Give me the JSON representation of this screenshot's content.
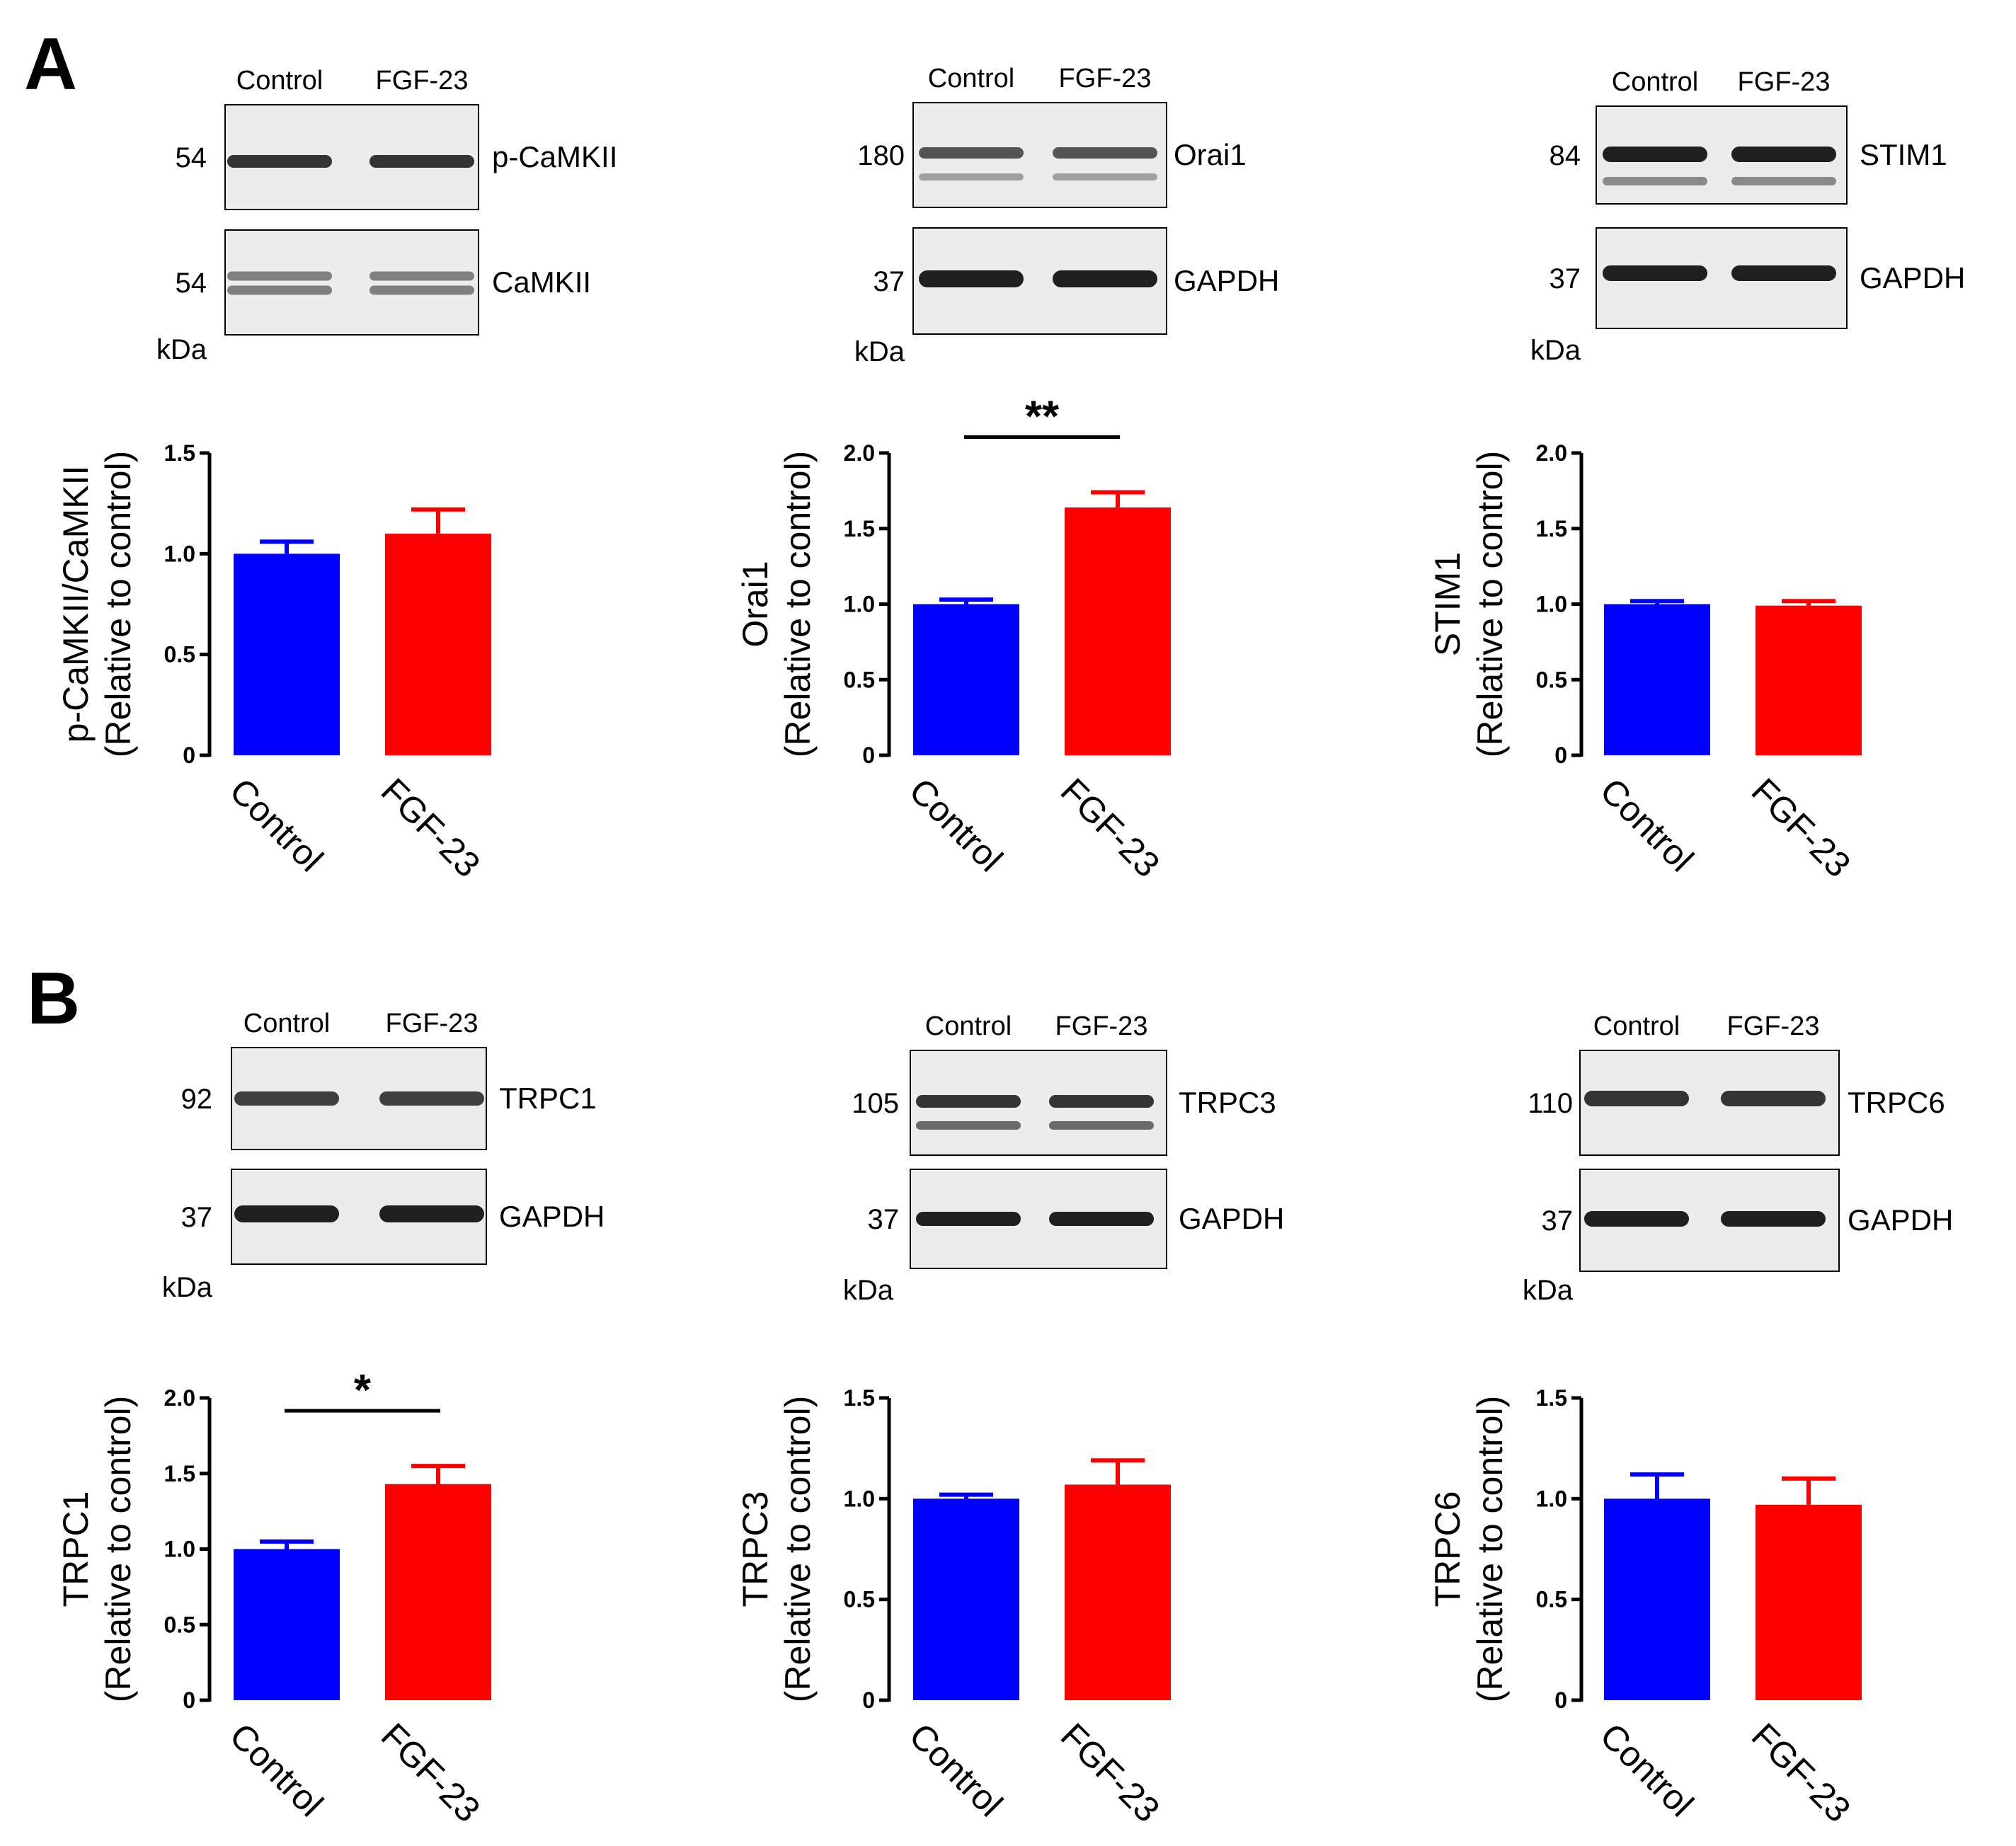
{
  "colors": {
    "control": "#0000ff",
    "fgf23": "#ff0000",
    "blot_bg": "#ececec",
    "band": "#141414"
  },
  "panels": [
    {
      "letter": "A",
      "blot_units": "kDa",
      "blots": [
        {
          "lanes": [
            "Control",
            "FGF-23"
          ],
          "rows": [
            {
              "mw": "54",
              "label": "p-CaMKII"
            },
            {
              "mw": "54",
              "label": "CaMKII"
            }
          ]
        },
        {
          "lanes": [
            "Control",
            "FGF-23"
          ],
          "rows": [
            {
              "mw": "180",
              "label": "Orai1"
            },
            {
              "mw": "37",
              "label": "GAPDH"
            }
          ]
        },
        {
          "lanes": [
            "Control",
            "FGF-23"
          ],
          "rows": [
            {
              "mw": "84",
              "label": "STIM1"
            },
            {
              "mw": "37",
              "label": "GAPDH"
            }
          ]
        }
      ]
    },
    {
      "letter": "B",
      "blot_units": "kDa",
      "blots": [
        {
          "lanes": [
            "Control",
            "FGF-23"
          ],
          "rows": [
            {
              "mw": "92",
              "label": "TRPC1"
            },
            {
              "mw": "37",
              "label": "GAPDH"
            }
          ]
        },
        {
          "lanes": [
            "Control",
            "FGF-23"
          ],
          "rows": [
            {
              "mw": "105",
              "label": "TRPC3"
            },
            {
              "mw": "37",
              "label": "GAPDH"
            }
          ]
        },
        {
          "lanes": [
            "Control",
            "FGF-23"
          ],
          "rows": [
            {
              "mw": "110",
              "label": "TRPC6"
            },
            {
              "mw": "37",
              "label": "GAPDH"
            }
          ]
        }
      ]
    }
  ],
  "chart_data": [
    {
      "type": "bar",
      "panel": "A",
      "categories": [
        "Control",
        "FGF-23"
      ],
      "values": [
        1.0,
        1.1
      ],
      "errors": [
        0.06,
        0.12
      ],
      "ylabel": [
        "p-CaMKII/CaMKII",
        "(Relative to control)"
      ],
      "ylim": [
        0,
        1.5
      ],
      "yticks": [
        0,
        0.5,
        1.0,
        1.5
      ],
      "ytick_labels": [
        "0",
        "0.5",
        "1.0",
        "1.5"
      ],
      "significance": null
    },
    {
      "type": "bar",
      "panel": "A",
      "categories": [
        "Control",
        "FGF-23"
      ],
      "values": [
        1.0,
        1.64
      ],
      "errors": [
        0.03,
        0.1
      ],
      "ylabel": [
        "Orai1",
        "(Relative to control)"
      ],
      "ylim": [
        0,
        2.0
      ],
      "yticks": [
        0,
        0.5,
        1.0,
        1.5,
        2.0
      ],
      "ytick_labels": [
        "0",
        "0.5",
        "1.0",
        "1.5",
        "2.0"
      ],
      "significance": "**"
    },
    {
      "type": "bar",
      "panel": "A",
      "categories": [
        "Control",
        "FGF-23"
      ],
      "values": [
        1.0,
        0.99
      ],
      "errors": [
        0.02,
        0.03
      ],
      "ylabel": [
        "STIM1",
        "(Relative to control)"
      ],
      "ylim": [
        0,
        2.0
      ],
      "yticks": [
        0,
        0.5,
        1.0,
        1.5,
        2.0
      ],
      "ytick_labels": [
        "0",
        "0.5",
        "1.0",
        "1.5",
        "2.0"
      ],
      "significance": null
    },
    {
      "type": "bar",
      "panel": "B",
      "categories": [
        "Control",
        "FGF-23"
      ],
      "values": [
        1.0,
        1.43
      ],
      "errors": [
        0.05,
        0.12
      ],
      "ylabel": [
        "TRPC1",
        "(Relative to control)"
      ],
      "ylim": [
        0,
        2.0
      ],
      "yticks": [
        0,
        0.5,
        1.0,
        1.5,
        2.0
      ],
      "ytick_labels": [
        "0",
        "0.5",
        "1.0",
        "1.5",
        "2.0"
      ],
      "significance": "*"
    },
    {
      "type": "bar",
      "panel": "B",
      "categories": [
        "Control",
        "FGF-23"
      ],
      "values": [
        1.0,
        1.07
      ],
      "errors": [
        0.02,
        0.12
      ],
      "ylabel": [
        "TRPC3",
        "(Relative to control)"
      ],
      "ylim": [
        0,
        1.5
      ],
      "yticks": [
        0,
        0.5,
        1.0,
        1.5
      ],
      "ytick_labels": [
        "0",
        "0.5",
        "1.0",
        "1.5"
      ],
      "significance": null
    },
    {
      "type": "bar",
      "panel": "B",
      "categories": [
        "Control",
        "FGF-23"
      ],
      "values": [
        1.0,
        0.97
      ],
      "errors": [
        0.12,
        0.13
      ],
      "ylabel": [
        "TRPC6",
        "(Relative to control)"
      ],
      "ylim": [
        0,
        1.5
      ],
      "yticks": [
        0,
        0.5,
        1.0,
        1.5
      ],
      "ytick_labels": [
        "0",
        "0.5",
        "1.0",
        "1.5"
      ],
      "significance": null
    }
  ]
}
